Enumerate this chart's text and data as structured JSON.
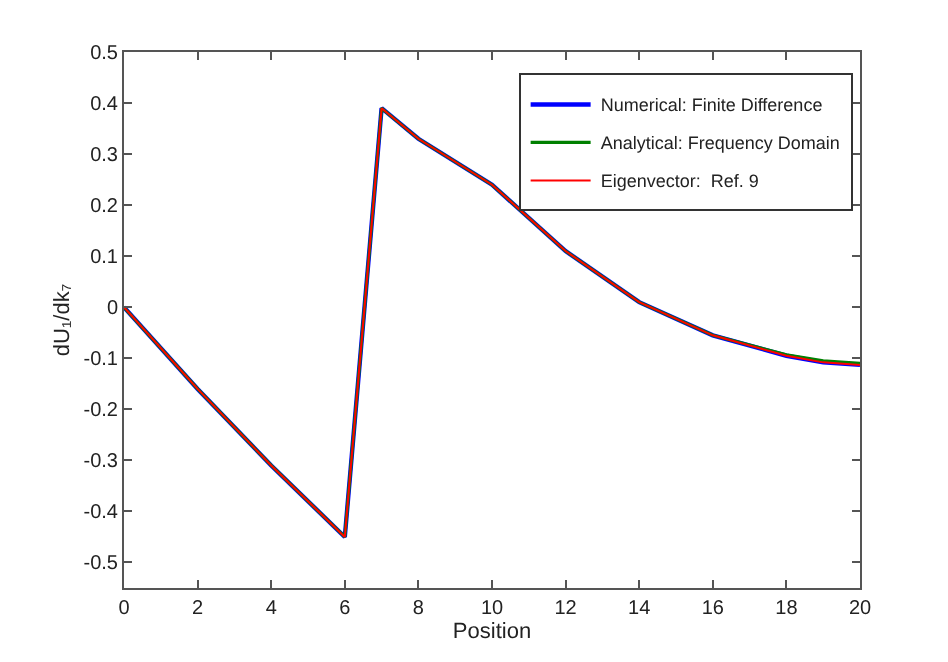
{
  "chart_data": {
    "type": "line",
    "xlabel": "Position",
    "ylabel": "dU₁/dk₇",
    "x": [
      0,
      2,
      4,
      6,
      7,
      8,
      10,
      12,
      14,
      16,
      18,
      19,
      20
    ],
    "series": [
      {
        "name": "Numerical: Finite Difference",
        "color": "#0000ff",
        "values": [
          0,
          -0.16,
          -0.31,
          -0.45,
          0.39,
          0.33,
          0.24,
          0.11,
          0.01,
          -0.055,
          -0.095,
          -0.108,
          -0.113
        ]
      },
      {
        "name": "Analytical: Frequency Domain",
        "color": "#008000",
        "values": [
          0,
          -0.16,
          -0.31,
          -0.45,
          0.39,
          0.33,
          0.24,
          0.11,
          0.01,
          -0.055,
          -0.093,
          -0.105,
          -0.11
        ]
      },
      {
        "name": "Eigenvector:  Ref. 9",
        "color": "#ff0000",
        "values": [
          0,
          -0.16,
          -0.31,
          -0.45,
          0.39,
          0.33,
          0.24,
          0.11,
          0.01,
          -0.055,
          -0.095,
          -0.108,
          -0.113
        ]
      }
    ],
    "xlim": [
      0,
      20
    ],
    "xticks": [
      0,
      2,
      4,
      6,
      8,
      10,
      12,
      14,
      16,
      18,
      20
    ],
    "ylim": [
      -0.55,
      0.5
    ],
    "yticks": [
      -0.5,
      -0.4,
      -0.3,
      -0.2,
      -0.1,
      0,
      0.1,
      0.2,
      0.3,
      0.4,
      0.5
    ],
    "legend": "top right",
    "marker": "none",
    "line_style": "solid"
  }
}
